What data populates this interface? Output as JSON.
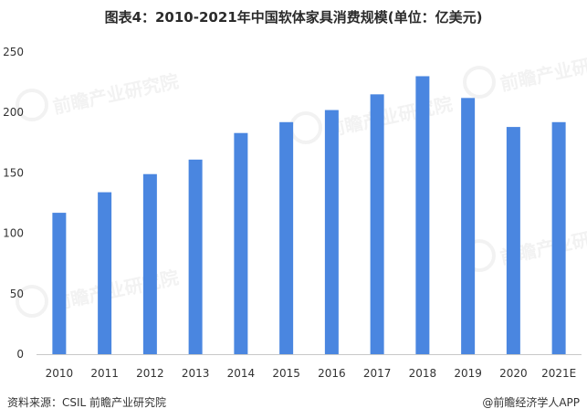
{
  "title": "图表4：2010-2021年中国软体家具消费规模(单位：亿美元)",
  "source_label": "资料来源：CSIL 前瞻产业研究院",
  "credit": "@前瞻经济学人APP",
  "watermark_text": "前瞻产业研究院",
  "colors": {
    "bar": "#4a86e0",
    "axis": "#c8c8c8",
    "text": "#333333"
  },
  "chart_data": {
    "type": "bar",
    "title": "图表4：2010-2021年中国软体家具消费规模(单位：亿美元)",
    "xlabel": "",
    "ylabel": "",
    "categories": [
      "2010",
      "2011",
      "2012",
      "2013",
      "2014",
      "2015",
      "2016",
      "2017",
      "2018",
      "2019",
      "2020",
      "2021E"
    ],
    "values": [
      117,
      134,
      149,
      161,
      183,
      192,
      202,
      215,
      230,
      212,
      188,
      192
    ],
    "ylim": [
      0,
      250
    ],
    "yticks": [
      0,
      50,
      100,
      150,
      200,
      250
    ],
    "grid": false,
    "legend": "none"
  }
}
